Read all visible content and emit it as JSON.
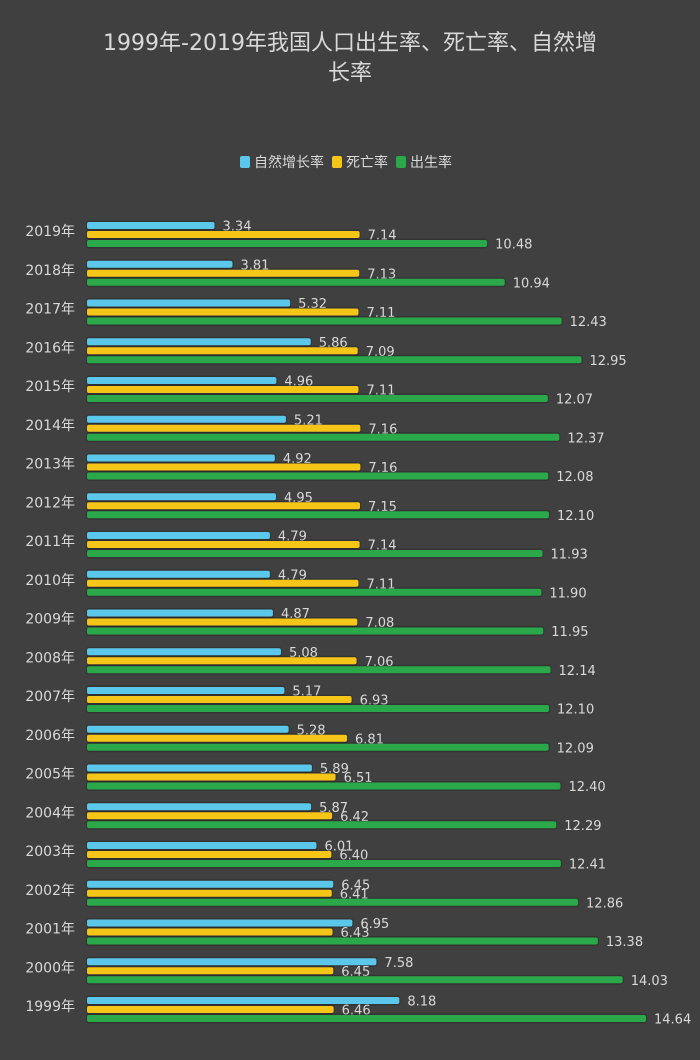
{
  "chart_data": {
    "type": "bar",
    "orientation": "horizontal",
    "title_line1": "1999年-2019年我国人口出生率、死亡率、自然增",
    "title_line2": "长率",
    "categories": [
      "2019年",
      "2018年",
      "2017年",
      "2016年",
      "2015年",
      "2014年",
      "2013年",
      "2012年",
      "2011年",
      "2010年",
      "2009年",
      "2008年",
      "2007年",
      "2006年",
      "2005年",
      "2004年",
      "2003年",
      "2002年",
      "2001年",
      "2000年",
      "1999年"
    ],
    "series": [
      {
        "name": "自然增长率",
        "color": "#5bc8eb",
        "values": [
          3.34,
          3.81,
          5.32,
          5.86,
          4.96,
          5.21,
          4.92,
          4.95,
          4.79,
          4.79,
          4.87,
          5.08,
          5.17,
          5.28,
          5.89,
          5.87,
          6.01,
          6.45,
          6.95,
          7.58,
          8.18
        ],
        "labels": [
          "3.34",
          "3.81",
          "5.32",
          "5.86",
          "4.96",
          "5.21",
          "4.92",
          "4.95",
          "4.79",
          "4.79",
          "4.87",
          "5.08",
          "5.17",
          "5.28",
          "5.89",
          "5.87",
          "6.01",
          "6.45",
          "6.95",
          "7.58",
          "8.18"
        ]
      },
      {
        "name": "死亡率",
        "color": "#f5c518",
        "values": [
          7.14,
          7.13,
          7.11,
          7.09,
          7.11,
          7.16,
          7.16,
          7.15,
          7.14,
          7.11,
          7.08,
          7.06,
          6.93,
          6.81,
          6.51,
          6.42,
          6.4,
          6.41,
          6.43,
          6.45,
          6.46
        ],
        "labels": [
          "7.14",
          "7.13",
          "7.11",
          "7.09",
          "7.11",
          "7.16",
          "7.16",
          "7.15",
          "7.14",
          "7.11",
          "7.08",
          "7.06",
          "6.93",
          "6.81",
          "6.51",
          "6.42",
          "6.40",
          "6.41",
          "6.43",
          "6.45",
          "6.46"
        ]
      },
      {
        "name": "出生率",
        "color": "#2aa84a",
        "values": [
          10.48,
          10.94,
          12.43,
          12.95,
          12.07,
          12.37,
          12.08,
          12.1,
          11.93,
          11.9,
          11.95,
          12.14,
          12.1,
          12.09,
          12.4,
          12.29,
          12.41,
          12.86,
          13.38,
          14.03,
          14.64
        ],
        "labels": [
          "10.48",
          "10.94",
          "12.43",
          "12.95",
          "12.07",
          "12.37",
          "12.08",
          "12.10",
          "11.93",
          "11.90",
          "11.95",
          "12.14",
          "12.10",
          "12.09",
          "12.40",
          "12.29",
          "12.41",
          "12.86",
          "13.38",
          "14.03",
          "14.64"
        ]
      }
    ],
    "legend_order": [
      "自然增长率",
      "死亡率",
      "出生率"
    ],
    "legend_position": "top-center",
    "xlim": [
      0,
      14.64
    ],
    "grid": false,
    "background": "#404040",
    "text_color": "#d9d9d9"
  }
}
